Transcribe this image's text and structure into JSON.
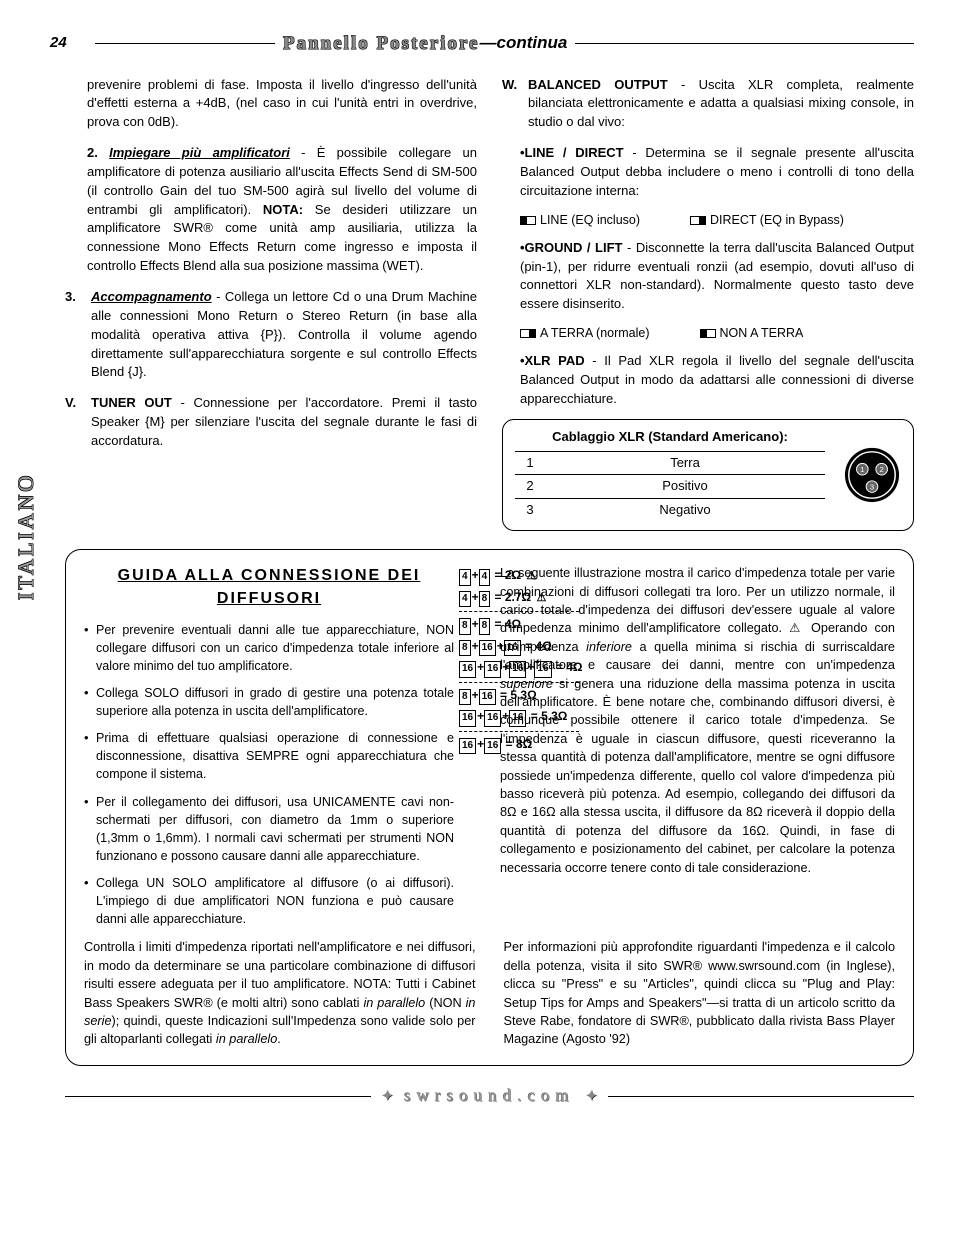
{
  "page_number": "24",
  "header": {
    "title": "Pannello Posteriore",
    "cont": "—continua"
  },
  "side_label": "ITALIANO",
  "left_col": {
    "p1": "prevenire problemi di fase. Imposta il livello d'ingresso dell'unità d'effetti esterna a +4dB, (nel caso in cui l'unità entri in overdrive, prova con 0dB).",
    "p2_num": "2.",
    "p2_head": "Impiegare più amplificatori",
    "p2_body": " - È possibile collegare un amplificatore di potenza ausiliario all'uscita Effects Send di SM-500 (il controllo Gain del tuo SM-500 agirà sul livello del volume di entrambi gli amplificatori). ",
    "p2_nota": "NOTA:",
    "p2_body2": " Se desideri utilizzare un amplificatore SWR® come unità amp ausiliaria, utilizza la connessione Mono Effects Return come ingresso e imposta il controllo Effects Blend alla sua posizione massima (WET).",
    "li3_num": "3.",
    "li3_head": "Accompagnamento",
    "li3_body": " - Collega un lettore Cd o una Drum Machine alle connessioni Mono Return o Stereo Return (in base alla modalità operativa attiva {P}). Controlla il volume agendo direttamente sull'apparecchiatura sorgente e sul controllo Effects Blend {J}.",
    "liV_num": "V.",
    "liV_head": "TUNER OUT",
    "liV_body": " - Connessione per l'accordatore. Premi il tasto Speaker {M} per silenziare l'uscita del segnale durante le fasi di accordatura."
  },
  "right_col": {
    "W_num": "W.",
    "W_head": "BALANCED OUTPUT",
    "W_body": " - Uscita XLR completa, realmente bilanciata elettronicamente e adatta a qualsiasi mixing console, in studio o dal vivo:",
    "line_head": "•LINE / DIRECT",
    "line_body": " - Determina se il segnale presente all'uscita Balanced Output debba includere o meno i controlli di tono della circuitazione interna:",
    "sw1a": "LINE (EQ incluso)",
    "sw1b": "DIRECT (EQ in Bypass)",
    "gnd_head": "•GROUND / LIFT",
    "gnd_body": " - Disconnette la terra dall'uscita Balanced Output (pin-1), per ridurre eventuali ronzii (ad esempio, dovuti all'uso di connettori XLR non-standard). Normalmente questo tasto deve essere disinserito.",
    "sw2a": "A TERRA (normale)",
    "sw2b": "NON A TERRA",
    "pad_head": "•XLR PAD",
    "pad_body": " - Il Pad XLR regola il livello del segnale dell'uscita Balanced Output in modo da adattarsi alle connessioni di diverse apparecchiature.",
    "xlr_title_b": "Cablaggio XLR ",
    "xlr_title": "(Standard Americano):",
    "xlr_rows": [
      {
        "n": "1",
        "v": "Terra"
      },
      {
        "n": "2",
        "v": "Positivo"
      },
      {
        "n": "3",
        "v": "Negativo"
      }
    ]
  },
  "speaker": {
    "title": "GUIDA ALLA CONNESSIONE DEI DIFFUSORI",
    "bullets": [
      "Per prevenire eventuali danni alle tue apparecchiature, NON collegare diffusori con un carico d'impedenza totale inferiore al valore minimo del tuo amplificatore.",
      "Collega SOLO diffusori in grado di gestire una potenza totale superiore alla potenza in uscita dell'amplificatore.",
      "Prima di effettuare qualsiasi operazione di connessione e disconnessione, disattiva SEMPRE ogni apparecchiatura che compone il sistema.",
      "Per il collegamento dei diffusori, usa UNICAMENTE cavi non-schermati per diffusori, con diametro da 1mm o superiore (1,3mm o 1,6mm). I normali cavi schermati per strumenti NON funzionano e possono causare danni alle apparecchiature.",
      "Collega UN SOLO amplificatore al diffusore (o ai diffusori). L'impiego di due amplificatori NON funziona e può causare danni alle apparecchiature."
    ],
    "impedance": [
      {
        "sp": [
          "4",
          "4"
        ],
        "eq": "= 2Ω",
        "warn": true
      },
      {
        "sp": [
          "4",
          "8"
        ],
        "eq": "= 2.7Ω",
        "warn": true
      },
      {
        "sp": [
          "8",
          "8"
        ],
        "eq": "= 4Ω",
        "warn": false
      },
      {
        "sp": [
          "8",
          "16",
          "16"
        ],
        "eq": "= 4Ω",
        "warn": false
      },
      {
        "sp": [
          "16",
          "16",
          "16",
          "16"
        ],
        "eq": "= 4Ω",
        "warn": false
      },
      {
        "sp": [
          "8",
          "16"
        ],
        "eq": "= 5.3Ω",
        "warn": false
      },
      {
        "sp": [
          "16",
          "16",
          "16"
        ],
        "eq": "= 5.3Ω",
        "warn": false
      },
      {
        "sp": [
          "16",
          "16"
        ],
        "eq": "= 8Ω",
        "warn": false
      }
    ],
    "right_p1a": "La seguente illustrazione mostra il carico d'impedenza totale per varie combinazioni di diffusori collegati tra loro. Per un utilizzo normale, il carico totale d'impedenza dei diffusori dev'essere uguale al valore d'impedenza minimo dell'amplificatore collegato. ⚠ Operando con un'impedenza ",
    "right_inf": "inferiore",
    "right_p1b": " a quella minima si rischia di surriscaldare l'amplificatore e causare dei danni, mentre con un'impedenza ",
    "right_sup": "superiore",
    "right_p1c": " si genera una riduzione della massima potenza in uscita dell'amplificatore. È bene notare che, combinando diffusori diversi, è comunque possibile ottenere il carico totale d'impedenza. Se l'impedenza è uguale in ciascun diffusore, questi riceveranno la stessa quantità di potenza dall'amplificatore, mentre se ogni diffusore possiede un'impedenza differente, quello col valore d'impedenza più basso riceverà più potenza. Ad esempio, collegando dei diffusori da 8Ω e 16Ω alla stessa uscita, il diffusore da 8Ω riceverà il doppio della quantità di potenza del diffusore da 16Ω. Quindi, in fase di collegamento e posizionamento del cabinet, per calcolare la potenza necessaria occorre tenere conto di tale considerazione.",
    "bottom_left": "Controlla i limiti d'impedenza riportati nell'amplificatore e nei diffusori, in modo da determinare se una particolare combinazione di diffusori risulti essere adeguata per il tuo amplificatore. NOTA: Tutti i Cabinet Bass Speakers SWR® (e molti altri) sono cablati ",
    "bottom_left_it1": "in parallelo",
    "bottom_left2": " (NON ",
    "bottom_left_it2": "in serie",
    "bottom_left3": "); quindi, queste Indicazioni sull'Impedenza sono valide solo per gli altoparlanti collegati ",
    "bottom_left_it3": "in parallelo",
    "bottom_left4": ".",
    "bottom_right": "Per informazioni più approfondite riguardanti l'impedenza e il calcolo della potenza, visita il sito SWR® www.swrsound.com (in Inglese), clicca su \"Press\" e su \"Articles\", quindi clicca su \"Plug and Play: Setup Tips for Amps and Speakers\"—si tratta di un articolo scritto da Steve Rabe, fondatore di SWR®, pubblicato dalla rivista Bass Player Magazine (Agosto '92)"
  },
  "footer": "swrsound.com"
}
